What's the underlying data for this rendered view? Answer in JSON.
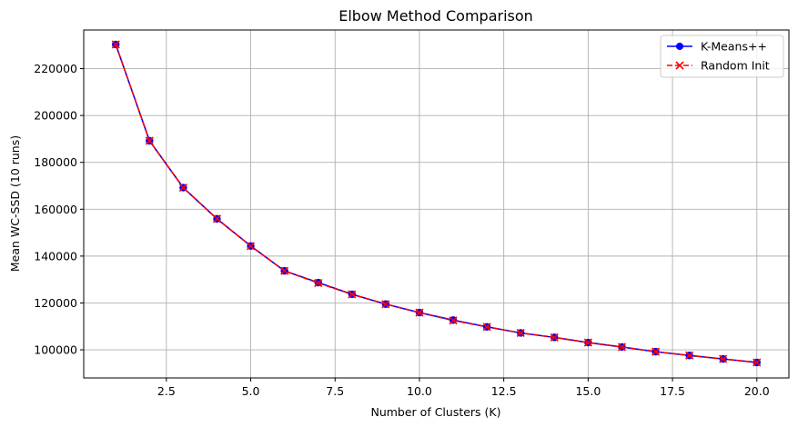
{
  "chart_data": {
    "type": "line",
    "title": "Elbow Method Comparison",
    "xlabel": "Number of Clusters (K)",
    "ylabel": "Mean WC-SSD (10 runs)",
    "xlim": [
      0.05,
      20.95
    ],
    "ylim": [
      88000,
      236500
    ],
    "x_ticks": [
      2.5,
      5.0,
      7.5,
      10.0,
      12.5,
      15.0,
      17.5,
      20.0
    ],
    "x_tick_labels": [
      "2.5",
      "5.0",
      "7.5",
      "10.0",
      "12.5",
      "15.0",
      "17.5",
      "20.0"
    ],
    "y_ticks": [
      100000,
      120000,
      140000,
      160000,
      180000,
      200000,
      220000
    ],
    "y_tick_labels": [
      "100000",
      "120000",
      "140000",
      "160000",
      "180000",
      "200000",
      "220000"
    ],
    "grid": true,
    "legend_position": "top-right",
    "x": [
      1,
      2,
      3,
      4,
      5,
      6,
      7,
      8,
      9,
      10,
      11,
      12,
      13,
      14,
      15,
      16,
      17,
      18,
      19,
      20
    ],
    "series": [
      {
        "name": "K-Means++",
        "color": "#0000ff",
        "line_style": "solid",
        "marker": "circle",
        "values": [
          230300,
          189200,
          169200,
          155900,
          144300,
          133700,
          128700,
          123700,
          119500,
          115900,
          112700,
          109800,
          107200,
          105300,
          103100,
          101200,
          99200,
          97600,
          96100,
          94600
        ]
      },
      {
        "name": "Random Init",
        "color": "#ff0000",
        "line_style": "dashed",
        "marker": "x",
        "values": [
          230300,
          189200,
          169200,
          155900,
          144300,
          133700,
          128500,
          123700,
          119500,
          115900,
          112500,
          109800,
          107200,
          105300,
          103100,
          101200,
          99200,
          97600,
          96100,
          94600
        ]
      }
    ]
  }
}
